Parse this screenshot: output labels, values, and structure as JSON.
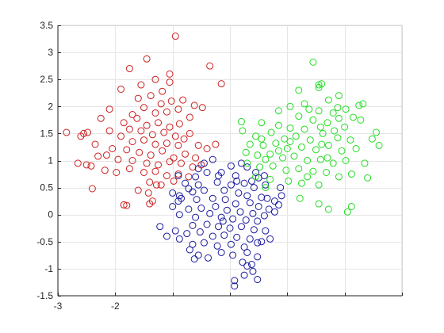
{
  "chart_data": {
    "type": "scatter",
    "title": "",
    "xlabel": "",
    "ylabel": "",
    "xlim": [
      -3,
      3
    ],
    "ylim": [
      -1.5,
      3.5
    ],
    "xticks": [
      -3,
      -2,
      -1,
      0,
      1,
      2,
      3
    ],
    "xtick_labels": [
      "-3",
      "-2",
      "",
      "",
      "",
      "",
      ""
    ],
    "yticks": [
      -1.5,
      -1,
      -0.5,
      0,
      0.5,
      1,
      1.5,
      2,
      2.5,
      3,
      3.5
    ],
    "ytick_labels": [
      "-1.5",
      "-1",
      "-0.5",
      "0",
      "0.5",
      "1",
      "1.5",
      "2",
      "2.5",
      "3",
      "3.5"
    ],
    "grid": true,
    "marker": "open-circle",
    "series": [
      {
        "color": "#cc2020",
        "points": [
          [
            -0.95,
            3.3
          ],
          [
            -1.05,
            2.6
          ],
          [
            -0.35,
            2.75
          ],
          [
            -0.15,
            2.42
          ],
          [
            -1.45,
            2.88
          ],
          [
            -1.75,
            2.7
          ],
          [
            -1.3,
            2.5
          ],
          [
            -1.05,
            2.45
          ],
          [
            -1.18,
            2.28
          ],
          [
            -1.55,
            2.4
          ],
          [
            -1.9,
            2.32
          ],
          [
            -1.6,
            2.15
          ],
          [
            -1.38,
            2.2
          ],
          [
            -1.2,
            2.05
          ],
          [
            -1.02,
            2.1
          ],
          [
            -0.82,
            2.12
          ],
          [
            -0.62,
            2.02
          ],
          [
            -0.48,
            1.98
          ],
          [
            -1.5,
            1.98
          ],
          [
            -1.7,
            1.85
          ],
          [
            -1.3,
            1.88
          ],
          [
            -1.1,
            1.9
          ],
          [
            -0.9,
            1.95
          ],
          [
            -0.7,
            1.8
          ],
          [
            -2.1,
            1.95
          ],
          [
            -2.25,
            1.78
          ],
          [
            -1.85,
            1.7
          ],
          [
            -1.62,
            1.78
          ],
          [
            -1.45,
            1.65
          ],
          [
            -1.25,
            1.7
          ],
          [
            -1.05,
            1.62
          ],
          [
            -0.88,
            1.68
          ],
          [
            -0.7,
            1.5
          ],
          [
            -1.75,
            1.58
          ],
          [
            -1.55,
            1.55
          ],
          [
            -1.35,
            1.48
          ],
          [
            -1.15,
            1.52
          ],
          [
            -0.95,
            1.45
          ],
          [
            -0.8,
            1.4
          ],
          [
            -2.48,
            1.52
          ],
          [
            -2.55,
            1.5
          ],
          [
            -2.1,
            1.55
          ],
          [
            -1.9,
            1.45
          ],
          [
            -1.7,
            1.35
          ],
          [
            -1.5,
            1.38
          ],
          [
            -1.3,
            1.3
          ],
          [
            -1.1,
            1.32
          ],
          [
            -0.9,
            1.28
          ],
          [
            -0.55,
            1.28
          ],
          [
            -0.4,
            1.22
          ],
          [
            -2.85,
            1.52
          ],
          [
            -2.35,
            1.3
          ],
          [
            -2.05,
            1.22
          ],
          [
            -1.8,
            1.2
          ],
          [
            -1.58,
            1.15
          ],
          [
            -1.38,
            1.1
          ],
          [
            -1.18,
            1.18
          ],
          [
            -0.98,
            1.05
          ],
          [
            -0.78,
            1.12
          ],
          [
            -0.25,
            1.3
          ],
          [
            -2.15,
            1.1
          ],
          [
            -1.95,
            1.02
          ],
          [
            -1.7,
            1.0
          ],
          [
            -1.45,
            0.95
          ],
          [
            -1.25,
            0.92
          ],
          [
            -1.05,
            0.98
          ],
          [
            -0.85,
            0.95
          ],
          [
            -0.65,
            0.88
          ],
          [
            -2.3,
            1.08
          ],
          [
            -2.5,
            0.92
          ],
          [
            -2.65,
            0.95
          ],
          [
            -2.42,
            0.9
          ],
          [
            -2.18,
            0.82
          ],
          [
            -1.98,
            0.78
          ],
          [
            -1.75,
            0.85
          ],
          [
            -1.5,
            0.78
          ],
          [
            -1.3,
            0.8
          ],
          [
            -1.1,
            0.72
          ],
          [
            -0.9,
            0.75
          ],
          [
            -0.72,
            0.7
          ],
          [
            -1.4,
            0.6
          ],
          [
            -1.2,
            0.55
          ],
          [
            -0.98,
            0.62
          ],
          [
            -1.6,
            0.45
          ],
          [
            -1.42,
            0.4
          ],
          [
            -2.4,
            0.48
          ],
          [
            -1.85,
            0.18
          ],
          [
            -1.8,
            0.17
          ],
          [
            -1.4,
            0.2
          ],
          [
            -1.35,
            0.25
          ],
          [
            -0.5,
            0.92
          ],
          [
            -0.6,
            1.05
          ],
          [
            -1.28,
            0.55
          ],
          [
            -2.6,
            1.45
          ]
        ]
      },
      {
        "color": "#1a1aa0",
        "points": [
          [
            -0.55,
            0.85
          ],
          [
            -0.45,
            0.95
          ],
          [
            -0.3,
            1.02
          ],
          [
            0.02,
            0.9
          ],
          [
            0.2,
            0.95
          ],
          [
            0.3,
            0.88
          ],
          [
            0.45,
            0.78
          ],
          [
            -0.9,
            0.72
          ],
          [
            -0.6,
            0.7
          ],
          [
            -0.15,
            0.78
          ],
          [
            0.1,
            0.72
          ],
          [
            0.38,
            0.62
          ],
          [
            0.5,
            0.68
          ],
          [
            0.6,
            0.72
          ],
          [
            -0.78,
            0.58
          ],
          [
            -0.55,
            0.55
          ],
          [
            -0.22,
            0.6
          ],
          [
            0.02,
            0.55
          ],
          [
            0.25,
            0.58
          ],
          [
            0.42,
            0.5
          ],
          [
            -1.0,
            0.4
          ],
          [
            -0.88,
            0.35
          ],
          [
            -0.65,
            0.42
          ],
          [
            -0.45,
            0.45
          ],
          [
            -0.1,
            0.45
          ],
          [
            0.15,
            0.4
          ],
          [
            0.3,
            0.35
          ],
          [
            0.55,
            0.32
          ],
          [
            0.65,
            0.3
          ],
          [
            0.78,
            0.25
          ],
          [
            -0.85,
            0.3
          ],
          [
            -0.58,
            0.28
          ],
          [
            -0.3,
            0.3
          ],
          [
            -0.08,
            0.28
          ],
          [
            0.1,
            0.2
          ],
          [
            0.35,
            0.22
          ],
          [
            0.5,
            0.15
          ],
          [
            0.68,
            0.1
          ],
          [
            -1.0,
            0.15
          ],
          [
            -0.72,
            0.1
          ],
          [
            -0.5,
            0.12
          ],
          [
            -0.25,
            0.15
          ],
          [
            -0.05,
            0.08
          ],
          [
            0.18,
            0.05
          ],
          [
            0.4,
            0.02
          ],
          [
            0.6,
            -0.02
          ],
          [
            -0.88,
            0.0
          ],
          [
            -0.6,
            -0.05
          ],
          [
            -0.35,
            0.02
          ],
          [
            -0.15,
            -0.05
          ],
          [
            0.05,
            -0.08
          ],
          [
            0.28,
            -0.1
          ],
          [
            0.48,
            -0.12
          ],
          [
            -0.65,
            -0.2
          ],
          [
            -0.4,
            -0.18
          ],
          [
            -0.2,
            -0.22
          ],
          [
            0.0,
            -0.25
          ],
          [
            0.2,
            -0.22
          ],
          [
            0.42,
            -0.28
          ],
          [
            0.62,
            -0.3
          ],
          [
            -0.95,
            -0.3
          ],
          [
            -0.75,
            -0.35
          ],
          [
            -0.52,
            -0.32
          ],
          [
            -0.3,
            -0.4
          ],
          [
            -0.1,
            -0.38
          ],
          [
            0.12,
            -0.42
          ],
          [
            0.35,
            -0.45
          ],
          [
            0.55,
            -0.5
          ],
          [
            -0.88,
            -0.45
          ],
          [
            -0.65,
            -0.55
          ],
          [
            -0.45,
            -0.52
          ],
          [
            -0.22,
            -0.58
          ],
          [
            0.02,
            -0.55
          ],
          [
            0.25,
            -0.6
          ],
          [
            0.48,
            -0.52
          ],
          [
            -0.7,
            -0.65
          ],
          [
            -0.55,
            -0.75
          ],
          [
            -0.38,
            -0.8
          ],
          [
            -0.15,
            -0.7
          ],
          [
            0.05,
            -0.75
          ],
          [
            0.3,
            -0.7
          ],
          [
            -0.62,
            -0.82
          ],
          [
            0.22,
            -0.88
          ],
          [
            0.38,
            -0.92
          ],
          [
            0.48,
            -0.78
          ],
          [
            -1.22,
            -0.22
          ],
          [
            -1.1,
            -0.4
          ],
          [
            0.3,
            -0.95
          ],
          [
            0.4,
            -1.05
          ],
          [
            0.25,
            -1.12
          ],
          [
            0.08,
            -1.22
          ],
          [
            0.08,
            -1.32
          ],
          [
            0.48,
            -1.2
          ],
          [
            0.7,
            -0.45
          ],
          [
            0.78,
            0.05
          ],
          [
            -0.2,
            0.72
          ],
          [
            0.62,
            0.55
          ],
          [
            0.9,
            0.35
          ],
          [
            0.88,
            0.5
          ],
          [
            -0.4,
            0.78
          ],
          [
            -0.72,
            0.48
          ],
          [
            -0.9,
            0.25
          ],
          [
            0.12,
            0.62
          ],
          [
            0.85,
            0.18
          ],
          [
            -0.12,
            -0.12
          ]
        ]
      },
      {
        "color": "#22dd22",
        "points": [
          [
            1.45,
            2.82
          ],
          [
            1.55,
            2.4
          ],
          [
            1.6,
            2.42
          ],
          [
            1.55,
            2.35
          ],
          [
            1.2,
            2.3
          ],
          [
            1.9,
            2.2
          ],
          [
            1.3,
            2.05
          ],
          [
            1.72,
            2.12
          ],
          [
            2.25,
            2.02
          ],
          [
            1.05,
            2.0
          ],
          [
            1.38,
            1.95
          ],
          [
            1.55,
            1.92
          ],
          [
            1.8,
            1.88
          ],
          [
            2.02,
            1.95
          ],
          [
            0.85,
            1.92
          ],
          [
            1.2,
            1.82
          ],
          [
            1.45,
            1.75
          ],
          [
            1.7,
            1.7
          ],
          [
            1.9,
            1.78
          ],
          [
            2.15,
            1.8
          ],
          [
            0.2,
            1.72
          ],
          [
            0.55,
            1.7
          ],
          [
            0.85,
            1.65
          ],
          [
            1.05,
            1.6
          ],
          [
            1.3,
            1.58
          ],
          [
            1.58,
            1.62
          ],
          [
            1.82,
            1.55
          ],
          [
            2.0,
            1.62
          ],
          [
            2.28,
            1.75
          ],
          [
            2.55,
            1.52
          ],
          [
            0.22,
            1.55
          ],
          [
            0.45,
            1.45
          ],
          [
            0.72,
            1.52
          ],
          [
            0.95,
            1.4
          ],
          [
            1.15,
            1.45
          ],
          [
            1.4,
            1.38
          ],
          [
            1.62,
            1.5
          ],
          [
            1.88,
            1.42
          ],
          [
            2.1,
            1.38
          ],
          [
            2.48,
            1.4
          ],
          [
            2.6,
            1.28
          ],
          [
            0.35,
            1.3
          ],
          [
            0.58,
            1.28
          ],
          [
            0.8,
            1.32
          ],
          [
            1.0,
            1.22
          ],
          [
            1.25,
            1.25
          ],
          [
            1.5,
            1.2
          ],
          [
            1.72,
            1.28
          ],
          [
            1.95,
            1.18
          ],
          [
            2.2,
            1.22
          ],
          [
            0.28,
            1.15
          ],
          [
            0.48,
            1.1
          ],
          [
            0.7,
            1.12
          ],
          [
            0.92,
            1.05
          ],
          [
            1.12,
            1.08
          ],
          [
            1.35,
            1.0
          ],
          [
            1.58,
            1.02
          ],
          [
            1.8,
            0.95
          ],
          [
            2.02,
            1.0
          ],
          [
            2.35,
            0.95
          ],
          [
            0.3,
            0.95
          ],
          [
            0.52,
            0.88
          ],
          [
            0.75,
            0.9
          ],
          [
            0.98,
            0.82
          ],
          [
            1.2,
            0.85
          ],
          [
            1.45,
            0.8
          ],
          [
            1.68,
            0.78
          ],
          [
            1.9,
            0.7
          ],
          [
            2.12,
            0.75
          ],
          [
            2.4,
            0.68
          ],
          [
            0.45,
            0.7
          ],
          [
            0.7,
            0.65
          ],
          [
            1.02,
            0.62
          ],
          [
            1.25,
            0.58
          ],
          [
            1.55,
            0.55
          ],
          [
            0.62,
            0.5
          ],
          [
            1.22,
            0.3
          ],
          [
            1.55,
            0.2
          ],
          [
            1.72,
            0.1
          ],
          [
            2.05,
            0.05
          ],
          [
            2.12,
            0.15
          ],
          [
            0.85,
            1.18
          ],
          [
            1.7,
            1.05
          ],
          [
            1.35,
            0.7
          ],
          [
            0.55,
            1.4
          ],
          [
            1.88,
            1.98
          ],
          [
            1.05,
            1.35
          ],
          [
            2.32,
            2.05
          ],
          [
            0.62,
            1.02
          ],
          [
            1.6,
            1.3
          ]
        ]
      }
    ]
  }
}
